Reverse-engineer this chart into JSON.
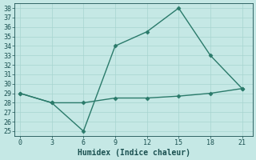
{
  "xlabel": "Humidex (Indice chaleur)",
  "ylabel": "",
  "background_color": "#c5e8e5",
  "line1_x": [
    0,
    3,
    6,
    9,
    12,
    15,
    18,
    21
  ],
  "line1_y": [
    29,
    28,
    25,
    34,
    35.5,
    38,
    33,
    29.5
  ],
  "line2_x": [
    0,
    3,
    6,
    9,
    12,
    15,
    18,
    21
  ],
  "line2_y": [
    29,
    28,
    28,
    28.5,
    28.5,
    28.7,
    29.0,
    29.5
  ],
  "line_color": "#2a7a6a",
  "marker": "D",
  "markersize": 2.5,
  "linewidth": 1.0,
  "xlim": [
    -0.5,
    22
  ],
  "ylim": [
    24.5,
    38.5
  ],
  "xticks": [
    0,
    3,
    6,
    9,
    12,
    15,
    18,
    21
  ],
  "yticks": [
    25,
    26,
    27,
    28,
    29,
    30,
    31,
    32,
    33,
    34,
    35,
    36,
    37,
    38
  ],
  "grid_color": "#a8d4d0",
  "font_color": "#1a5050",
  "font_size": 6,
  "xlabel_fontsize": 7
}
